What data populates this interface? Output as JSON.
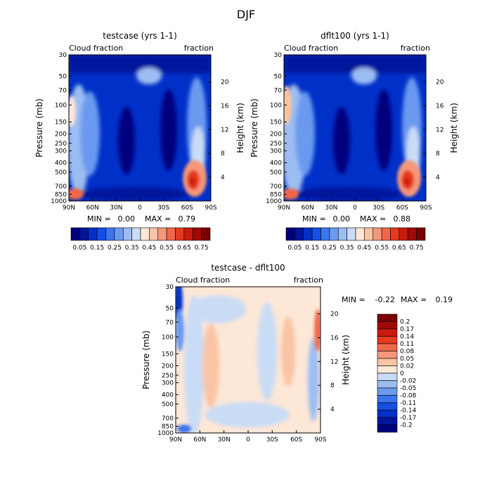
{
  "figure": {
    "title": "DJF"
  },
  "colors": {
    "abs_palette": [
      "#00007f",
      "#00159c",
      "#0030c8",
      "#1550e4",
      "#3b74ee",
      "#6b9af0",
      "#9bbdf2",
      "#c9dcf6",
      "#fde7d7",
      "#f9c4a4",
      "#f5977a",
      "#f0684a",
      "#e53a1e",
      "#c81b0d",
      "#a00a05",
      "#7a0000"
    ],
    "diff_palette": [
      "#7a0000",
      "#a00a05",
      "#c81b0d",
      "#e53a1e",
      "#f0684a",
      "#f5977a",
      "#f9c4a4",
      "#fde7d7",
      "#ffffff",
      "#c9dcf6",
      "#9bbdf2",
      "#6b9af0",
      "#3b74ee",
      "#1550e4",
      "#0030c8",
      "#00159c",
      "#00007f"
    ]
  },
  "chart_data": [
    {
      "type": "heatmap",
      "title": "testcase (yrs 1-1)",
      "left_label": "Cloud fraction",
      "right_label": "fraction",
      "xlabel": "",
      "ylabel": "Pressure (mb)",
      "ylabel_right": "Height (km)",
      "x_ticks": [
        "90N",
        "60N",
        "30N",
        "0",
        "30S",
        "60S",
        "90S"
      ],
      "y_ticks": [
        "30",
        "50",
        "70",
        "100",
        "150",
        "200",
        "250",
        "300",
        "400",
        "500",
        "700",
        "850",
        "1000"
      ],
      "y_right_ticks": [
        "20",
        "16",
        "12",
        "8",
        "4"
      ],
      "xlim": [
        90,
        -90
      ],
      "ylim": [
        1000,
        30
      ],
      "stats": {
        "min_label": "MIN =",
        "min": "0.00",
        "max_label": "MAX =",
        "max": "0.79"
      },
      "colorbar": {
        "orientation": "horizontal",
        "labels": [
          "0.05",
          "0.15",
          "0.25",
          "0.35",
          "0.45",
          "0.55",
          "0.65",
          "0.75"
        ]
      }
    },
    {
      "type": "heatmap",
      "title": "dflt100 (yrs 1-1)",
      "left_label": "Cloud fraction",
      "right_label": "fraction",
      "xlabel": "",
      "ylabel": "Pressure (mb)",
      "ylabel_right": "Height (km)",
      "x_ticks": [
        "90N",
        "60N",
        "30N",
        "0",
        "30S",
        "60S",
        "90S"
      ],
      "y_ticks": [
        "30",
        "50",
        "70",
        "100",
        "150",
        "200",
        "250",
        "300",
        "400",
        "500",
        "700",
        "850",
        "1000"
      ],
      "y_right_ticks": [
        "20",
        "16",
        "12",
        "8",
        "4"
      ],
      "xlim": [
        90,
        -90
      ],
      "ylim": [
        1000,
        30
      ],
      "stats": {
        "min_label": "MIN =",
        "min": "0.00",
        "max_label": "MAX =",
        "max": "0.88"
      },
      "colorbar": {
        "orientation": "horizontal",
        "labels": [
          "0.05",
          "0.15",
          "0.25",
          "0.35",
          "0.45",
          "0.55",
          "0.65",
          "0.75"
        ]
      }
    },
    {
      "type": "heatmap",
      "title": "testcase - dflt100",
      "left_label": "Cloud fraction",
      "right_label": "fraction",
      "xlabel": "",
      "ylabel": "Pressure (mb)",
      "ylabel_right": "Height (km)",
      "x_ticks": [
        "90N",
        "60N",
        "30N",
        "0",
        "30S",
        "60S",
        "90S"
      ],
      "y_ticks": [
        "30",
        "50",
        "70",
        "100",
        "150",
        "200",
        "250",
        "300",
        "400",
        "500",
        "700",
        "850",
        "1000"
      ],
      "y_right_ticks": [
        "20",
        "16",
        "12",
        "8",
        "4"
      ],
      "xlim": [
        90,
        -90
      ],
      "ylim": [
        1000,
        30
      ],
      "stats": {
        "min_label": "MIN =",
        "min": "-0.22",
        "max_label": "MAX =",
        "max": "0.19"
      },
      "colorbar": {
        "orientation": "vertical",
        "labels": [
          "0.2",
          "0.17",
          "0.14",
          "0.11",
          "0.08",
          "0.05",
          "0.02",
          "0",
          "-0.02",
          "-0.05",
          "-0.08",
          "-0.11",
          "-0.14",
          "-0.17",
          "-0.2"
        ]
      }
    }
  ]
}
